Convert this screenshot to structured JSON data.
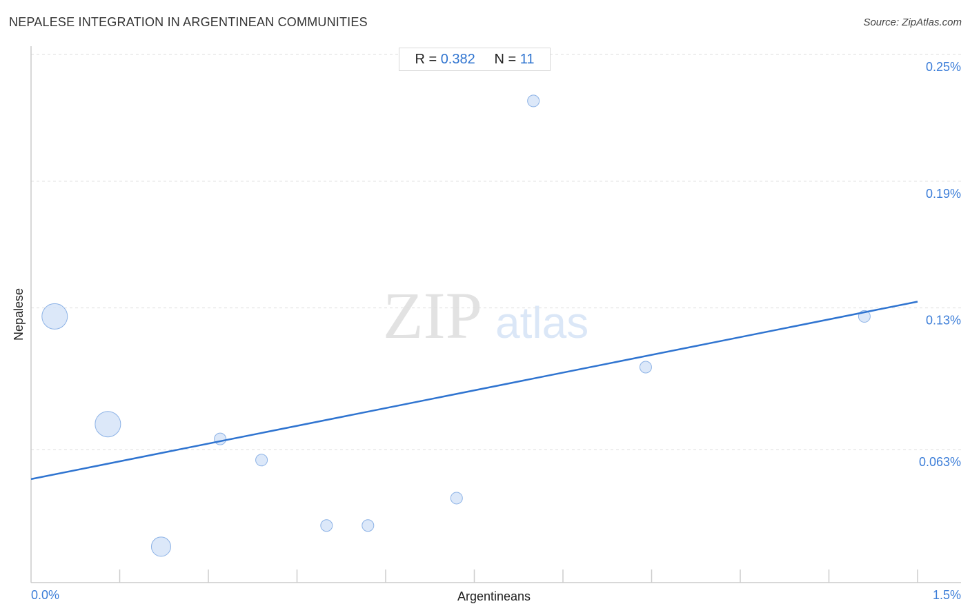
{
  "title": "NEPALESE INTEGRATION IN ARGENTINEAN COMMUNITIES",
  "source": "Source: ZipAtlas.com",
  "stats": {
    "r_label": "R =",
    "r_value": "0.382",
    "n_label": "N =",
    "n_value": "11"
  },
  "watermark": {
    "zip": "ZIP",
    "atlas": "atlas"
  },
  "colors": {
    "accent": "#2f74d0",
    "point_fill": "#d3e2f7",
    "point_stroke": "#8cb2e6",
    "grid": "#dddddd",
    "axis": "#cccccc"
  },
  "chart_data": {
    "type": "scatter",
    "xlabel": "Argentineans",
    "ylabel": "Nepalese",
    "xlim": [
      0,
      1.5
    ],
    "ylim": [
      0,
      0.25
    ],
    "x_tick_labels": [
      {
        "value": 0,
        "label": "0.0%"
      },
      {
        "value": 1.5,
        "label": "1.5%"
      }
    ],
    "y_tick_labels": [
      {
        "value": 0.063,
        "label": "0.063%"
      },
      {
        "value": 0.13,
        "label": "0.13%"
      },
      {
        "value": 0.19,
        "label": "0.19%"
      },
      {
        "value": 0.25,
        "label": "0.25%"
      }
    ],
    "points": [
      {
        "x": 0.04,
        "y": 0.126,
        "size": 3
      },
      {
        "x": 0.13,
        "y": 0.075,
        "size": 3
      },
      {
        "x": 0.22,
        "y": 0.017,
        "size": 2
      },
      {
        "x": 0.32,
        "y": 0.068,
        "size": 1
      },
      {
        "x": 0.39,
        "y": 0.058,
        "size": 1
      },
      {
        "x": 0.5,
        "y": 0.027,
        "size": 1
      },
      {
        "x": 0.57,
        "y": 0.027,
        "size": 1
      },
      {
        "x": 0.72,
        "y": 0.04,
        "size": 1
      },
      {
        "x": 0.85,
        "y": 0.228,
        "size": 1
      },
      {
        "x": 1.04,
        "y": 0.102,
        "size": 1
      },
      {
        "x": 1.41,
        "y": 0.126,
        "size": 1
      }
    ],
    "trendline": {
      "x": [
        0,
        1.5
      ],
      "y": [
        0.049,
        0.133
      ]
    }
  }
}
